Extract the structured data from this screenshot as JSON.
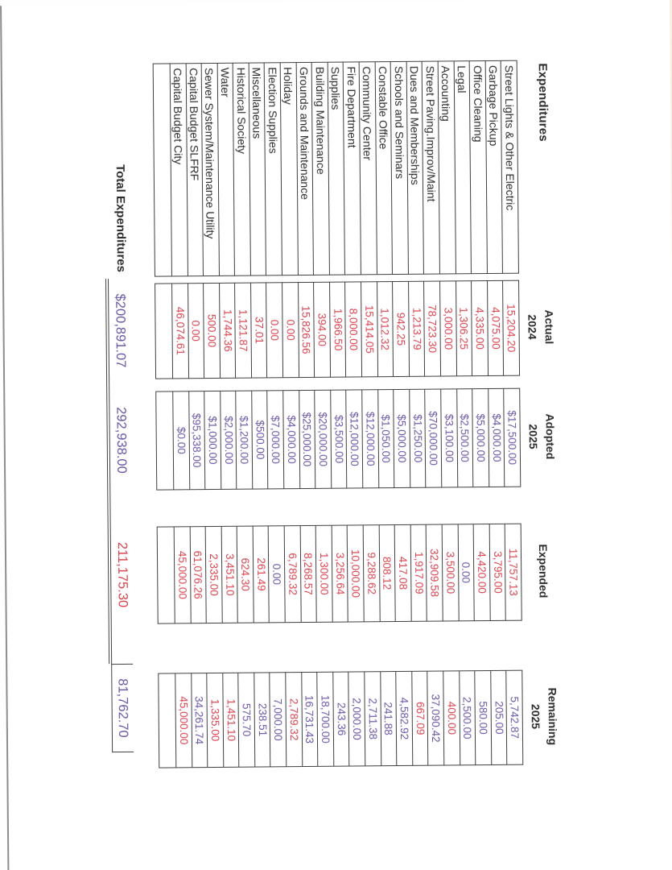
{
  "sheet": {
    "title": "Expenditures",
    "palette": {
      "red": "#d84450",
      "purple": "#6c57a5",
      "ink": "#2b2b2b",
      "line": "#3f3f3f"
    },
    "columns": [
      {
        "line1": "Actual",
        "line2": "2024"
      },
      {
        "line1": "Adopted",
        "line2": "2025"
      },
      {
        "line1": "Expended",
        "line2": ""
      },
      {
        "line1": "Remaining",
        "line2": "2025"
      }
    ],
    "rows": [
      {
        "category": "Street Lights & Other Electric",
        "actual": "15,204.20",
        "adopted": "$17,500.00",
        "expended": "11,757.13",
        "remaining": "5,742.87",
        "expended_color": "red",
        "remaining_color": "purple"
      },
      {
        "category": "Garbage Pickup",
        "actual": "4,075.00",
        "adopted": "$4,000.00",
        "expended": "3,795.00",
        "remaining": "205.00",
        "expended_color": "red",
        "remaining_color": "purple"
      },
      {
        "category": "Office Cleaning",
        "actual": "4,335.00",
        "adopted": "$5,000.00",
        "expended": "4,420.00",
        "remaining": "580.00",
        "expended_color": "red",
        "remaining_color": "purple"
      },
      {
        "category": "Legal",
        "actual": "1,306.25",
        "adopted": "$2,500.00",
        "expended": "0.00",
        "remaining": "2,500.00",
        "expended_color": "purple",
        "remaining_color": "purple"
      },
      {
        "category": "Accounting",
        "actual": "3,000.00",
        "adopted": "$3,100.00",
        "expended": "3,500.00",
        "remaining": "400.00",
        "expended_color": "red",
        "remaining_color": "red"
      },
      {
        "category": "Street Paving.Improv/Maint",
        "actual": "78,723.30",
        "adopted": "$70,000.00",
        "expended": "32,909.58",
        "remaining": "37,090.42",
        "expended_color": "red",
        "remaining_color": "purple"
      },
      {
        "category": "Dues and Memberships",
        "actual": "1,213.79",
        "adopted": "$1,250.00",
        "expended": "1,917.09",
        "remaining": "667.09",
        "expended_color": "red",
        "remaining_color": "red"
      },
      {
        "category": "Schools and Seminars",
        "actual": "942.25",
        "adopted": "$5,000.00",
        "expended": "417.08",
        "remaining": "4,582.92",
        "expended_color": "red",
        "remaining_color": "purple"
      },
      {
        "category": "Constable Office",
        "actual": "1,012.32",
        "adopted": "$1,050.00",
        "expended": "808.12",
        "remaining": "241.88",
        "expended_color": "red",
        "remaining_color": "purple"
      },
      {
        "category": "Community Center",
        "actual": "15,414.05",
        "adopted": "$12,000.00",
        "expended": "9,288.62",
        "remaining": "2,711.38",
        "expended_color": "red",
        "remaining_color": "purple"
      },
      {
        "category": "Fire Department",
        "actual": "8,000.00",
        "adopted": "$12,000.00",
        "expended": "10,000.00",
        "remaining": "2,000.00",
        "expended_color": "red",
        "remaining_color": "purple"
      },
      {
        "category": "Supplies",
        "actual": "1,966.50",
        "adopted": "$3,500.00",
        "expended": "3,256.64",
        "remaining": "243.36",
        "expended_color": "red",
        "remaining_color": "purple"
      },
      {
        "category": "Building Maintenance",
        "actual": "394.00",
        "adopted": "$20,000.00",
        "expended": "1,300.00",
        "remaining": "18,700.00",
        "expended_color": "red",
        "remaining_color": "purple"
      },
      {
        "category": "Grounds and Maintenance",
        "actual": "15,826.56",
        "adopted": "$25,000.00",
        "expended": "8,268.57",
        "remaining": "16,731.43",
        "expended_color": "red",
        "remaining_color": "purple"
      },
      {
        "category": "Holiday",
        "actual": "0.00",
        "adopted": "$4,000.00",
        "expended": "6,789.32",
        "remaining": "2,789.32",
        "expended_color": "red",
        "remaining_color": "red"
      },
      {
        "category": "Election Supplies",
        "actual": "0.00",
        "adopted": "$7,000.00",
        "expended": "0.00",
        "remaining": "7,000.00",
        "expended_color": "purple",
        "remaining_color": "purple"
      },
      {
        "category": "Miscellaneous",
        "actual": "37.01",
        "adopted": "$500.00",
        "expended": "261.49",
        "remaining": "238.51",
        "expended_color": "red",
        "remaining_color": "purple"
      },
      {
        "category": "Historical Society",
        "actual": "1,121.87",
        "adopted": "$1,200.00",
        "expended": "624.30",
        "remaining": "575.70",
        "expended_color": "red",
        "remaining_color": "purple"
      },
      {
        "category": "Water",
        "actual": "1,744.36",
        "adopted": "$2,000.00",
        "expended": "3,451.10",
        "remaining": "1,451.10",
        "expended_color": "red",
        "remaining_color": "red"
      },
      {
        "category": "Sewer System/Maintenance Utility",
        "actual": "500.00",
        "adopted": "$1,000.00",
        "expended": "2,335.00",
        "remaining": "1,335.00",
        "expended_color": "red",
        "remaining_color": "red"
      },
      {
        "category": "Capital Budget SLFRF",
        "actual": "0.00",
        "adopted": "$95,338.00",
        "expended": "61,076.26",
        "remaining": "34,261.74",
        "expended_color": "red",
        "remaining_color": "purple"
      },
      {
        "category": "Capital Budget City",
        "actual": "46,074.61",
        "adopted": "$0.00",
        "expended": "45,000.00",
        "remaining": "45,000.00",
        "expended_color": "red",
        "remaining_color": "red"
      },
      {
        "category": "",
        "actual": "",
        "adopted": "",
        "expended": "",
        "remaining": "",
        "expended_color": "red",
        "remaining_color": "red"
      }
    ],
    "totals": {
      "label": "Total Expenditures",
      "actual": "$200,891.07",
      "actual_color": "purple",
      "adopted": "292,938.00",
      "adopted_color": "purple",
      "expended": "211,175.30",
      "expended_color": "red",
      "remaining": "81,762.70",
      "remaining_color": "purple"
    }
  }
}
